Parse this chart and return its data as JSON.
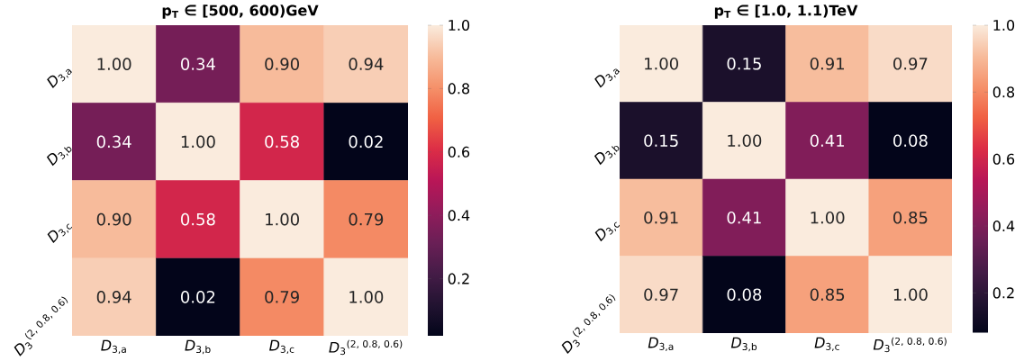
{
  "chart_data": [
    {
      "type": "heatmap",
      "title": "p$_{T}$ ∈ [500, 600)GeV",
      "categories": [
        "*D*$_{3,a}$",
        "*D*$_{3,b}$",
        "*D*$_{3,c}$",
        "*D*$_{3}$$^{(2, 0.8, 0.6)}$"
      ],
      "y_categories": [
        "*D*$_{3,a}$",
        "*D*$_{3,b}$",
        "*D*$_{3,c}$",
        "*D*$_{3}$$^{(2, 0.8, 0.6)}$"
      ],
      "cells": [
        [
          1.0,
          0.34,
          0.9,
          0.94
        ],
        [
          0.34,
          1.0,
          0.58,
          0.02
        ],
        [
          0.9,
          0.58,
          1.0,
          0.79
        ],
        [
          0.94,
          0.02,
          0.79,
          1.0
        ]
      ],
      "cell_labels": [
        [
          "1.00",
          "0.34",
          "0.90",
          "0.94"
        ],
        [
          "0.34",
          "1.00",
          "0.58",
          "0.02"
        ],
        [
          "0.90",
          "0.58",
          "1.00",
          "0.79"
        ],
        [
          "0.94",
          "0.02",
          "0.79",
          "1.00"
        ]
      ],
      "clim": [
        0.02,
        1.0
      ],
      "cticks": [
        {
          "value": 0.2,
          "label": "0.2"
        },
        {
          "value": 0.4,
          "label": "0.4"
        },
        {
          "value": 0.6,
          "label": "0.6"
        },
        {
          "value": 0.8,
          "label": "0.8"
        },
        {
          "value": 1.0,
          "label": "1.0"
        }
      ]
    },
    {
      "type": "heatmap",
      "title": "p$_{T}$ ∈ [1.0, 1.1)TeV",
      "categories": [
        "*D*$_{3,a}$",
        "*D*$_{3,b}$",
        "*D*$_{3,c}$",
        "*D*$_{3}$$^{(2, 0.8, 0.6)}$"
      ],
      "y_categories": [
        "*D*$_{3,a}$",
        "*D*$_{3,b}$",
        "*D*$_{3,c}$",
        "*D*$_{3}$$^{(2, 0.8, 0.6)}$"
      ],
      "cells": [
        [
          1.0,
          0.15,
          0.91,
          0.97
        ],
        [
          0.15,
          1.0,
          0.41,
          0.08
        ],
        [
          0.91,
          0.41,
          1.0,
          0.85
        ],
        [
          0.97,
          0.08,
          0.85,
          1.0
        ]
      ],
      "cell_labels": [
        [
          "1.00",
          "0.15",
          "0.91",
          "0.97"
        ],
        [
          "0.15",
          "1.00",
          "0.41",
          "0.08"
        ],
        [
          "0.91",
          "0.41",
          "1.00",
          "0.85"
        ],
        [
          "0.97",
          "0.08",
          "0.85",
          "1.00"
        ]
      ],
      "clim": [
        0.08,
        1.0
      ],
      "cticks": [
        {
          "value": 0.2,
          "label": "0.2"
        },
        {
          "value": 0.4,
          "label": "0.4"
        },
        {
          "value": 0.6,
          "label": "0.6"
        },
        {
          "value": 0.8,
          "label": "0.8"
        },
        {
          "value": 1.0,
          "label": "1.0"
        }
      ]
    }
  ]
}
